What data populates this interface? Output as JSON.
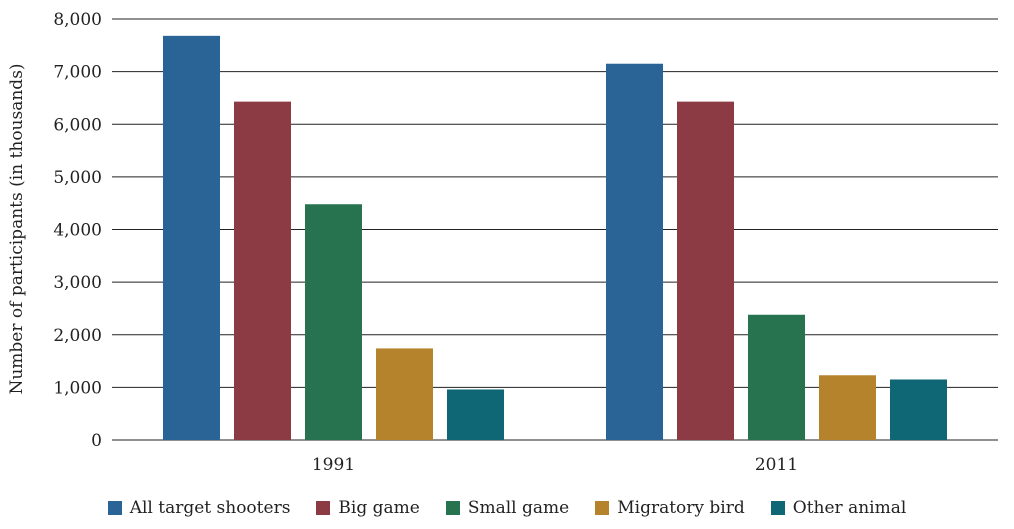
{
  "chart_data": {
    "type": "bar",
    "title": "",
    "xlabel": "",
    "ylabel": "Number of participants (in thousands)",
    "categories": [
      "1991",
      "2011"
    ],
    "ylim": [
      0,
      8000
    ],
    "yticks": [
      0,
      1000,
      2000,
      3000,
      4000,
      5000,
      6000,
      7000,
      8000
    ],
    "ytick_labels": [
      "0",
      "1,000",
      "2,000",
      "3,000",
      "4,000",
      "5,000",
      "6,000",
      "7,000",
      "8,000"
    ],
    "grid": "horizontal",
    "legend_position": "bottom",
    "series": [
      {
        "name": "All target shooters",
        "color": "#2a6496",
        "values": [
          7680,
          7150
        ]
      },
      {
        "name": "Big game",
        "color": "#8c3b45",
        "values": [
          6430,
          6430
        ]
      },
      {
        "name": "Small game",
        "color": "#277350",
        "values": [
          4480,
          2380
        ]
      },
      {
        "name": "Migratory bird",
        "color": "#b5832b",
        "values": [
          1740,
          1230
        ]
      },
      {
        "name": "Other animal",
        "color": "#0f6775",
        "values": [
          960,
          1150
        ]
      }
    ]
  }
}
